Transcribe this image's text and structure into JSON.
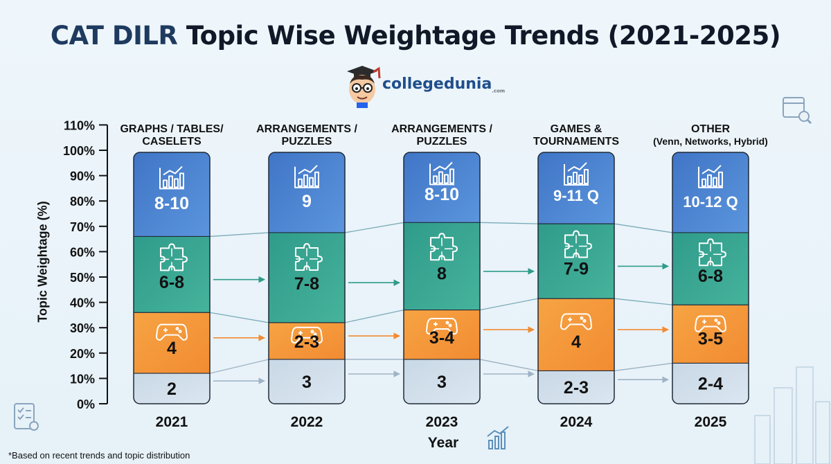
{
  "title": {
    "highlight": "CAT DILR",
    "rest": " Topic Wise Weightage Trends (2021-2025)"
  },
  "brand": {
    "name": "collegedunia",
    "suffix": ".com"
  },
  "colors": {
    "blue": "#4a80cf",
    "green": "#33a393",
    "orange": "#f59a3c",
    "light": "#cfdde9",
    "title_dark": "#1e3a5f",
    "brand_blue": "#1f4e8c"
  },
  "chart_data": {
    "type": "bar",
    "stacked": true,
    "ylabel": "Topic Weightage (%)",
    "xlabel": "Year",
    "ylim": [
      0,
      110
    ],
    "yticks": [
      "0%",
      "10%",
      "20%",
      "30%",
      "40%",
      "50%",
      "60%",
      "70%",
      "80%",
      "90%",
      "100%",
      "110%"
    ],
    "categories": [
      "2021",
      "2022",
      "2023",
      "2024",
      "2025"
    ],
    "column_labels": [
      [
        "GRAPHS / TABLES/",
        "CASELETS"
      ],
      [
        "ARRANGEMENTS /",
        "PUZZLES"
      ],
      [
        "ARRANGEMENTS /",
        "PUZZLES"
      ],
      [
        "GAMES &",
        "TOURNAMENTS"
      ],
      [
        "OTHER",
        "(Venn, Networks, Hybrid)"
      ]
    ],
    "segment_order_bottom_to_top": [
      "light",
      "orange",
      "green",
      "blue"
    ],
    "boundaries_percent": [
      [
        12,
        36,
        66
      ],
      [
        17.5,
        32,
        67.5
      ],
      [
        17.5,
        37,
        71.5
      ],
      [
        13,
        41.5,
        71
      ],
      [
        16,
        39,
        67.5
      ]
    ],
    "segment_labels": [
      [
        "2",
        "4",
        "6-8",
        "8-10"
      ],
      [
        "3",
        "2-3",
        "7-8",
        "9"
      ],
      [
        "3",
        "3-4",
        "8",
        "8-10"
      ],
      [
        "2-3",
        "4",
        "7-9",
        "9-11 Q"
      ],
      [
        "2-4",
        "3-5",
        "6-8",
        "10-12 Q"
      ]
    ],
    "segment_icons": {
      "blue": "bar-chart-icon",
      "green": "puzzle-icon",
      "orange": "gamepad-icon"
    }
  },
  "footnote": "*Based on recent trends and topic distribution"
}
